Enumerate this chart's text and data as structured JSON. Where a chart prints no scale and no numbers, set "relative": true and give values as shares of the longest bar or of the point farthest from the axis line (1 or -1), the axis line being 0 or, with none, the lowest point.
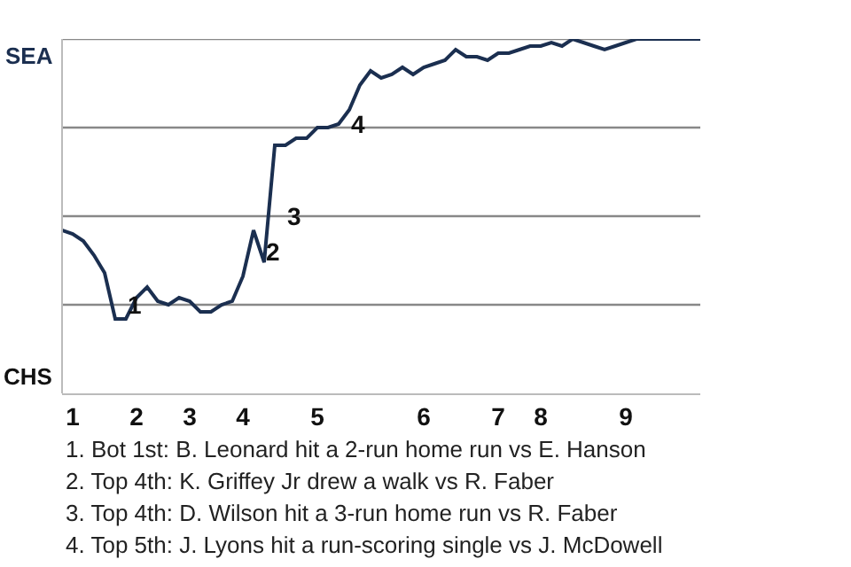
{
  "chart_data": {
    "type": "line",
    "categories": [
      null,
      "1",
      null,
      null,
      null,
      null,
      null,
      "2",
      null,
      null,
      null,
      null,
      "3",
      null,
      null,
      null,
      null,
      "4",
      null,
      null,
      null,
      null,
      null,
      null,
      "5",
      null,
      null,
      null,
      null,
      null,
      null,
      null,
      null,
      null,
      "6",
      null,
      null,
      null,
      null,
      null,
      null,
      "7",
      null,
      null,
      null,
      "8",
      null,
      null,
      null,
      null,
      null,
      null,
      null,
      "9",
      null,
      null,
      null,
      null,
      null,
      null,
      null
    ],
    "relative": true,
    "series": [
      {
        "color": "#1b2f50",
        "values": [
          0.46,
          0.45,
          0.43,
          0.39,
          0.34,
          0.21,
          0.21,
          0.27,
          0.3,
          0.26,
          0.25,
          0.27,
          0.26,
          0.23,
          0.23,
          0.25,
          0.26,
          0.33,
          0.46,
          0.37,
          0.7,
          0.7,
          0.72,
          0.72,
          0.75,
          0.75,
          0.76,
          0.8,
          0.87,
          0.91,
          0.89,
          0.9,
          0.92,
          0.9,
          0.92,
          0.93,
          0.94,
          0.97,
          0.95,
          0.95,
          0.94,
          0.96,
          0.96,
          0.97,
          0.98,
          0.98,
          0.99,
          0.98,
          1,
          0.99,
          0.98,
          0.97,
          0.98,
          0.99,
          1,
          1,
          1,
          1,
          1,
          1,
          1
        ]
      }
    ],
    "ref_lines": [
      {
        "axis": "y",
        "value": 0.25,
        "color": "#888888"
      },
      {
        "axis": "y",
        "value": 0.5,
        "color": "#888888"
      },
      {
        "axis": "y",
        "value": 0.75,
        "color": "#888888"
      },
      {
        "axis": "y",
        "value": 1,
        "color": "#888888"
      }
    ],
    "annotations": [
      "SEA",
      "CHS",
      {
        "text": "1",
        "y": 0.25
      },
      {
        "text": "2",
        "y": 0.4
      },
      {
        "text": "3",
        "y": 0.5
      },
      {
        "text": "4",
        "y": 0.76
      },
      "1. Bot 1st: B. Leonard hit a 2-run home run vs E. Hanson",
      "2. Top 4th: K. Griffey Jr drew a walk vs R. Faber",
      "3. Top 4th: D. Wilson hit a 3-run home run vs R. Faber",
      "4. Top 5th: J. Lyons hit a run-scoring single vs J. McDowell"
    ],
    "marker": "none",
    "line_style": "solid"
  }
}
